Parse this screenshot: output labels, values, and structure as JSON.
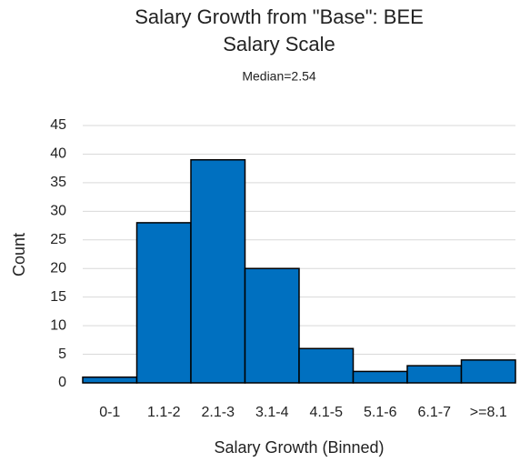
{
  "chart_data": {
    "type": "bar",
    "title": "Salary Growth from \"Base\": BEE Salary Scale",
    "subtitle": "Median=2.54",
    "xlabel": "Salary Growth (Binned)",
    "ylabel": "Count",
    "categories": [
      "0-1",
      "1.1-2",
      "2.1-3",
      "3.1-4",
      "4.1-5",
      "5.1-6",
      "6.1-7",
      ">=8.1"
    ],
    "values": [
      1,
      28,
      39,
      20,
      6,
      2,
      3,
      4
    ],
    "color": "#0070c0",
    "ylim": [
      0,
      45
    ],
    "yticks": [
      0,
      5,
      10,
      15,
      20,
      25,
      30,
      35,
      40,
      45
    ],
    "grid": true
  }
}
